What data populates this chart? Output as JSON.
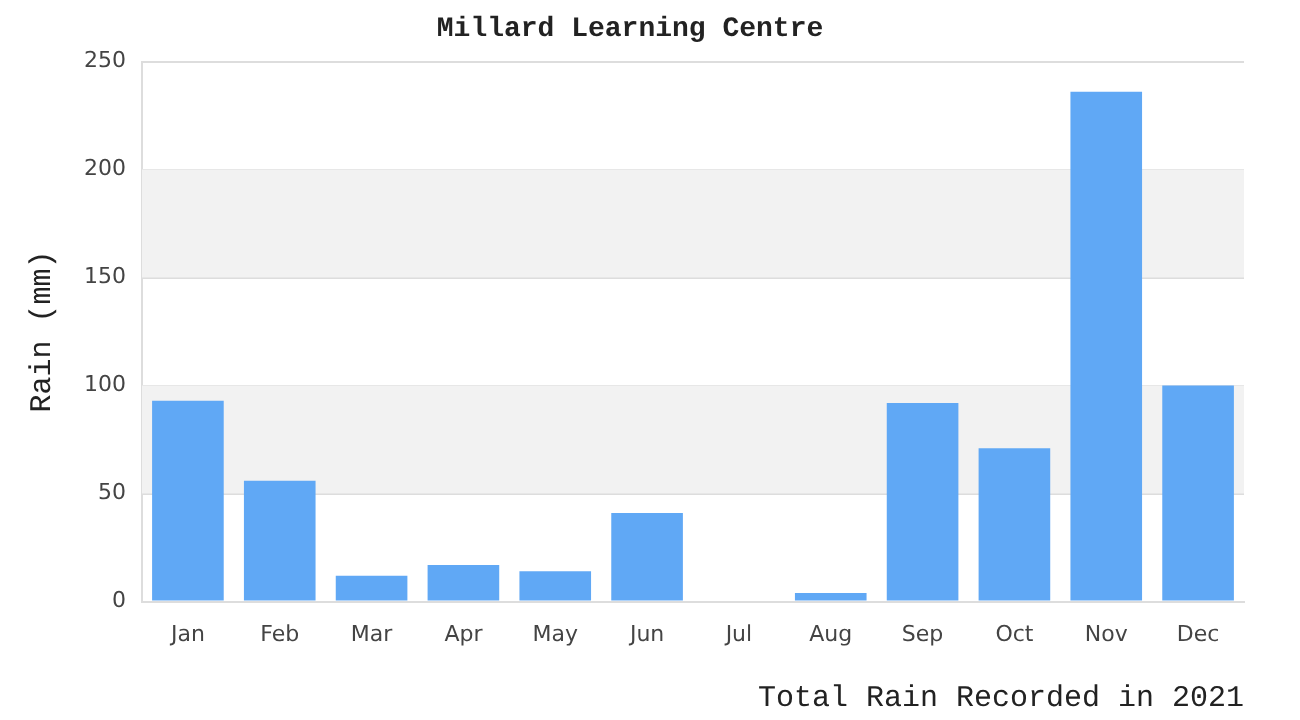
{
  "chart_data": {
    "type": "bar",
    "title": "Millard Learning Centre",
    "xlabel": "Total Rain Recorded in 2021",
    "ylabel": "Rain (mm)",
    "categories": [
      "Jan",
      "Feb",
      "Mar",
      "Apr",
      "May",
      "Jun",
      "Jul",
      "Aug",
      "Sep",
      "Oct",
      "Nov",
      "Dec"
    ],
    "values": [
      93,
      56,
      12,
      17,
      14,
      41,
      0,
      4,
      92,
      71,
      236,
      100
    ],
    "color": "#60a8f5",
    "ylim": [
      0,
      250
    ],
    "yticks": [
      0,
      50,
      100,
      150,
      200,
      250
    ],
    "grid": "y",
    "bands": [
      {
        "axis": "y",
        "from": 50,
        "to": 100,
        "color": "#f2f2f2"
      },
      {
        "axis": "y",
        "from": 150,
        "to": 200,
        "color": "#f2f2f2"
      }
    ],
    "legend": false
  }
}
